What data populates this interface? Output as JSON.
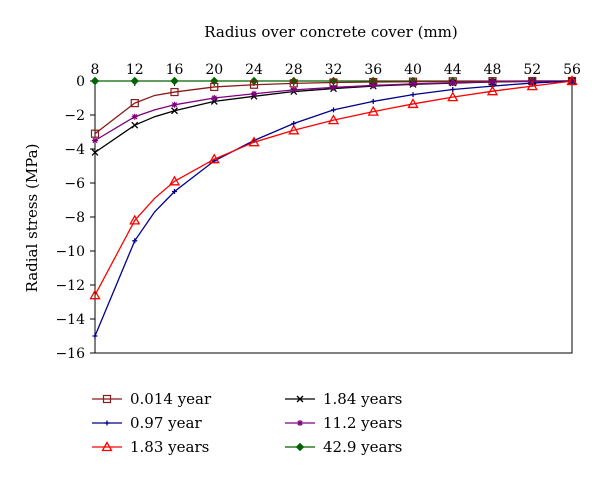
{
  "chart_data": {
    "type": "line",
    "title": "",
    "xlabel": "Radius over concrete cover (mm)",
    "ylabel": "Radial stress (MPa)",
    "x_axis_position": "top",
    "xlim": [
      8,
      56
    ],
    "ylim": [
      -16,
      0
    ],
    "x_ticks": [
      8,
      12,
      16,
      20,
      24,
      28,
      32,
      36,
      40,
      44,
      48,
      52,
      56
    ],
    "y_ticks": [
      0,
      -2,
      -4,
      -6,
      -8,
      -10,
      -12,
      -14,
      -16
    ],
    "grid": false,
    "legend_position": "bottom",
    "series": [
      {
        "name": "0.014 year",
        "color": "#8b1a1a",
        "marker": "square",
        "x": [
          8,
          12,
          14,
          16,
          20,
          24,
          28,
          32,
          36,
          40,
          44,
          48,
          52,
          56
        ],
        "y": [
          -3.1,
          -1.3,
          -0.85,
          -0.65,
          -0.35,
          -0.22,
          -0.14,
          -0.09,
          -0.06,
          -0.04,
          -0.02,
          -0.01,
          0.0,
          0.0
        ],
        "markers_x": [
          8,
          12,
          16,
          20,
          24,
          28,
          32,
          36,
          40,
          44,
          48,
          52,
          56
        ]
      },
      {
        "name": "0.97 year",
        "color": "#00008b",
        "marker": "plus",
        "x": [
          8,
          12,
          14,
          16,
          20,
          24,
          28,
          32,
          36,
          40,
          44,
          48,
          52,
          56
        ],
        "y": [
          -15.0,
          -9.4,
          -7.7,
          -6.5,
          -4.7,
          -3.5,
          -2.5,
          -1.7,
          -1.2,
          -0.8,
          -0.5,
          -0.3,
          -0.12,
          0.0
        ],
        "markers_x": [
          8,
          12,
          16,
          20,
          24,
          28,
          32,
          36,
          40,
          44,
          48,
          52,
          56
        ]
      },
      {
        "name": "1.83 years",
        "color": "#ff0000",
        "marker": "triangle",
        "x": [
          8,
          12,
          14,
          16,
          20,
          24,
          28,
          32,
          36,
          40,
          44,
          48,
          52,
          56
        ],
        "y": [
          -12.6,
          -8.2,
          -6.9,
          -5.9,
          -4.6,
          -3.6,
          -2.9,
          -2.3,
          -1.8,
          -1.35,
          -0.95,
          -0.6,
          -0.3,
          0.0
        ],
        "markers_x": [
          8,
          12,
          16,
          20,
          24,
          28,
          32,
          36,
          40,
          44,
          48,
          52,
          56
        ]
      },
      {
        "name": "1.84 years",
        "color": "#000000",
        "marker": "x",
        "x": [
          8,
          12,
          14,
          16,
          20,
          24,
          28,
          32,
          36,
          40,
          44,
          48,
          52,
          56
        ],
        "y": [
          -4.2,
          -2.6,
          -2.1,
          -1.75,
          -1.2,
          -0.9,
          -0.62,
          -0.45,
          -0.3,
          -0.2,
          -0.12,
          -0.06,
          -0.02,
          0.0
        ],
        "markers_x": [
          8,
          12,
          16,
          20,
          24,
          28,
          32,
          36,
          40,
          44,
          48,
          52,
          56
        ]
      },
      {
        "name": "11.2 years",
        "color": "#800080",
        "marker": "asterisk",
        "x": [
          8,
          12,
          14,
          16,
          20,
          24,
          28,
          32,
          36,
          40,
          44,
          48,
          52,
          56
        ],
        "y": [
          -3.5,
          -2.1,
          -1.7,
          -1.4,
          -1.0,
          -0.75,
          -0.52,
          -0.38,
          -0.26,
          -0.17,
          -0.1,
          -0.05,
          -0.02,
          0.0
        ],
        "markers_x": [
          8,
          12,
          16,
          20,
          24,
          28,
          32,
          36,
          40,
          44,
          48,
          52,
          56
        ]
      },
      {
        "name": "42.9 years",
        "color": "#006400",
        "marker": "diamond",
        "x": [
          8,
          12,
          16,
          20,
          24,
          28,
          32,
          36,
          40,
          44,
          48,
          52,
          56
        ],
        "y": [
          0.0,
          0.0,
          0.0,
          0.0,
          0.0,
          0.0,
          0.0,
          0.0,
          0.0,
          0.0,
          0.0,
          0.0,
          0.0
        ],
        "markers_x": [
          8,
          12,
          16,
          20,
          24,
          28,
          32,
          36,
          40,
          44,
          48,
          52,
          56
        ]
      }
    ]
  }
}
